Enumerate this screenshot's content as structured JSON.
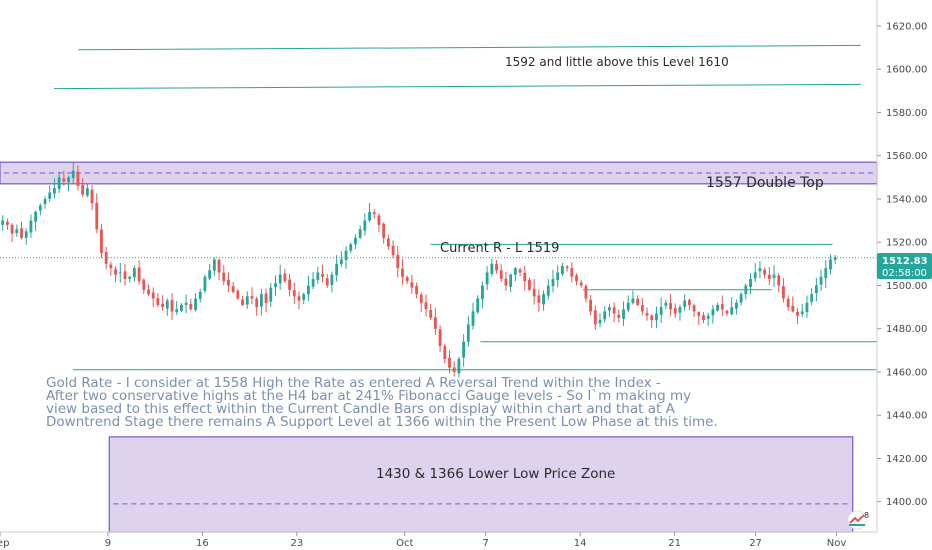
{
  "chart_data": {
    "type": "candlestick",
    "instrument_note": "Gold",
    "ylim": [
      1386,
      1632
    ],
    "y_ticks": [
      1400,
      1420,
      1440,
      1460,
      1480,
      1500,
      1520,
      1540,
      1560,
      1580,
      1600,
      1620
    ],
    "x_ticks": [
      {
        "day": 0,
        "label": "Sep"
      },
      {
        "day": 8,
        "label": "9"
      },
      {
        "day": 15,
        "label": "16"
      },
      {
        "day": 22,
        "label": "23"
      },
      {
        "day": 30,
        "label": "Oct"
      },
      {
        "day": 36,
        "label": "7"
      },
      {
        "day": 43,
        "label": "14"
      },
      {
        "day": 50,
        "label": "21"
      },
      {
        "day": 56,
        "label": "27"
      },
      {
        "day": 62,
        "label": "Nov"
      }
    ],
    "x_domain": [
      0,
      65
    ],
    "current_price": {
      "value": 1512.83,
      "label": "1512.83",
      "countdown": "02:58:00"
    },
    "zones": [
      {
        "name": "double-top-zone",
        "y1": 1547,
        "y2": 1557,
        "x1": 0,
        "x2": 65,
        "dashed": 1552,
        "label": "1557 Double Top",
        "color": "#7e57c2"
      },
      {
        "name": "lower-low-zone",
        "y1": 1386,
        "y2": 1430,
        "x1": 8.1,
        "x2": 63.2,
        "dashed": 1399,
        "label": "1430 & 1366 Lower Low Price Zone",
        "color": "#7e57c2"
      }
    ],
    "trend_lines": [
      {
        "name": "line-1610",
        "x1": 5.8,
        "y1": 1609,
        "x2": 63.8,
        "y2": 1611
      },
      {
        "name": "line-1592",
        "x1": 4.0,
        "y1": 1591,
        "x2": 63.8,
        "y2": 1593
      },
      {
        "name": "line-1519",
        "x1": 31.9,
        "y1": 1519,
        "x2": 61.7,
        "y2": 1519
      },
      {
        "name": "line-1498",
        "x1": 43.2,
        "y1": 1498,
        "x2": 57.2,
        "y2": 1498
      },
      {
        "name": "line-1474",
        "x1": 35.6,
        "y1": 1474,
        "x2": 65,
        "y2": 1474
      },
      {
        "name": "line-1461",
        "x1": 5.4,
        "y1": 1461,
        "x2": 65,
        "y2": 1461
      }
    ],
    "annotations": {
      "level_1610": "1592 and little above this Level 1610",
      "current_r": "Current R - L 1519",
      "commentary": [
        "Gold Rate - I consider at 1558 High the Rate as entered A Reversal Trend within the Index -",
        "After two conservative highs at the H4 bar at 241% Fibonacci Gauge levels - So I`m making my",
        "view based to this effect within the Current Candle Bars on display within chart and that at A",
        "Downtrend Stage there remains A Support Level at 1366 within the Present Low Phase at this time."
      ]
    },
    "colors": {
      "up": "#26a69a",
      "down": "#ef5350",
      "line": "#26a69a",
      "zone_fill": "#d1c4e9"
    },
    "closes": [
      1530,
      1528,
      1524,
      1526,
      1522,
      1525,
      1530,
      1534,
      1537,
      1540,
      1543,
      1545,
      1550,
      1548,
      1550,
      1553,
      1546,
      1542,
      1545,
      1538,
      1526,
      1515,
      1510,
      1508,
      1505,
      1506,
      1503,
      1504,
      1508,
      1502,
      1498,
      1496,
      1494,
      1491,
      1490,
      1493,
      1488,
      1489,
      1491,
      1492,
      1489,
      1494,
      1497,
      1504,
      1507,
      1512,
      1506,
      1502,
      1500,
      1497,
      1494,
      1491,
      1495,
      1494,
      1490,
      1496,
      1492,
      1499,
      1501,
      1505,
      1502,
      1498,
      1495,
      1493,
      1496,
      1500,
      1503,
      1506,
      1504,
      1500,
      1505,
      1510,
      1512,
      1516,
      1519,
      1522,
      1526,
      1530,
      1534,
      1533,
      1528,
      1522,
      1518,
      1514,
      1508,
      1504,
      1502,
      1499,
      1496,
      1492,
      1489,
      1485,
      1480,
      1472,
      1466,
      1462,
      1460,
      1466,
      1474,
      1482,
      1488,
      1494,
      1500,
      1506,
      1510,
      1507,
      1503,
      1500,
      1505,
      1508,
      1506,
      1502,
      1498,
      1495,
      1492,
      1496,
      1500,
      1503,
      1506,
      1509,
      1508,
      1504,
      1502,
      1500,
      1494,
      1488,
      1482,
      1484,
      1488,
      1490,
      1487,
      1485,
      1489,
      1492,
      1494,
      1491,
      1488,
      1486,
      1484,
      1487,
      1490,
      1492,
      1489,
      1487,
      1490,
      1493,
      1491,
      1488,
      1486,
      1484,
      1486,
      1489,
      1491,
      1489,
      1487,
      1490,
      1492,
      1496,
      1500,
      1503,
      1506,
      1508,
      1505,
      1503,
      1505,
      1500,
      1494,
      1490,
      1488,
      1486,
      1488,
      1492,
      1496,
      1500,
      1504,
      1508,
      1512,
      1513
    ]
  }
}
